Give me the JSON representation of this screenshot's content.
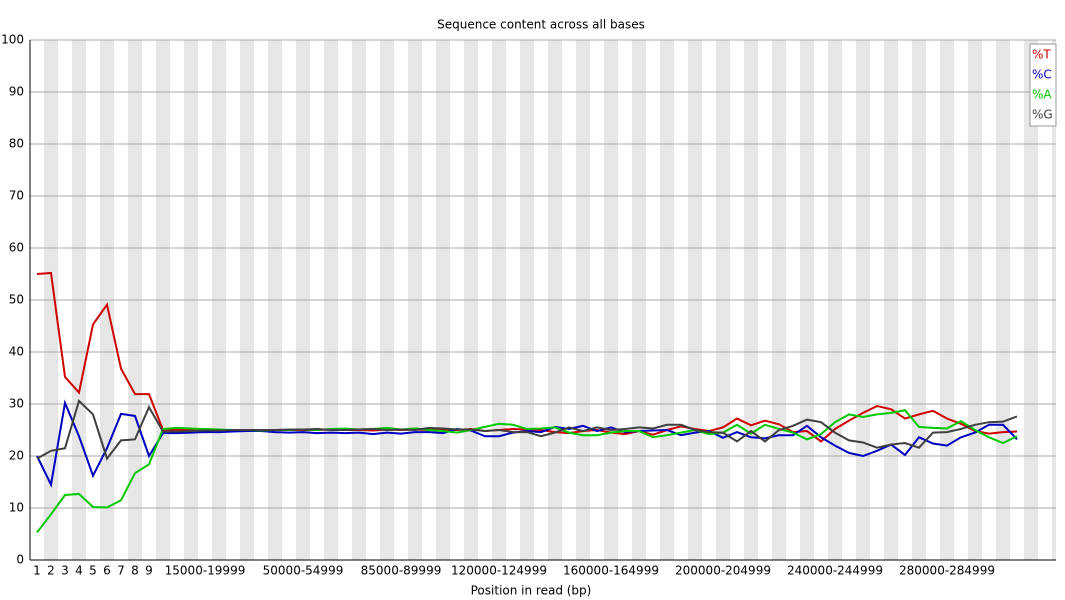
{
  "chart_data": {
    "type": "line",
    "title": "Sequence content across all bases",
    "x_label": "Position in read (bp)",
    "categories": [
      "1",
      "2",
      "3",
      "4",
      "5",
      "6",
      "7",
      "8",
      "9",
      null,
      null,
      null,
      "15000-19999",
      null,
      null,
      null,
      null,
      null,
      null,
      "50000-54999",
      null,
      null,
      null,
      null,
      null,
      null,
      "85000-89999",
      null,
      null,
      null,
      null,
      null,
      null,
      "120000-124999",
      null,
      null,
      null,
      null,
      null,
      null,
      null,
      "160000-164999",
      null,
      null,
      null,
      null,
      null,
      null,
      null,
      "200000-204999",
      null,
      null,
      null,
      null,
      null,
      null,
      null,
      "240000-244999",
      null,
      null,
      null,
      null,
      null,
      null,
      null,
      "280000-284999",
      null,
      null,
      null,
      null,
      null
    ],
    "series": [
      {
        "name": "%T",
        "color": "#d00000",
        "values": [
          55,
          55.2,
          35.2,
          32.2,
          45.3,
          49.1,
          36.8,
          31.9,
          31.9,
          25,
          25,
          25,
          24.9,
          25,
          25,
          25,
          24.9,
          25,
          25,
          25,
          25,
          25.1,
          25,
          25,
          24.9,
          25.1,
          25,
          25.1,
          25,
          25,
          25,
          25.2,
          24.8,
          25,
          25.2,
          25.1,
          25,
          24.6,
          24.4,
          24.8,
          25,
          24.5,
          24.2,
          24.8,
          24.1,
          25,
          25.7,
          25.2,
          24.8,
          25.5,
          27.2,
          25.9,
          26.8,
          26.1,
          24.6,
          24.8,
          22.8,
          25.2,
          26.8,
          28.3,
          29.6,
          29,
          27.2,
          28,
          28.7,
          27.2,
          26.2,
          24.8,
          24.3,
          24.6,
          24.7
        ]
      },
      {
        "name": "%C",
        "color": "#0000c0",
        "values": [
          20,
          14.5,
          30.2,
          23.8,
          16.2,
          21.5,
          28.1,
          27.7,
          20,
          24.4,
          24.4,
          24.5,
          24.6,
          24.6,
          24.7,
          24.8,
          24.8,
          24.6,
          24.5,
          24.6,
          24.4,
          24.5,
          24.4,
          24.5,
          24.2,
          24.5,
          24.3,
          24.6,
          24.6,
          24.4,
          25.2,
          24.9,
          23.8,
          23.8,
          24.5,
          24.8,
          24.6,
          25.6,
          25.2,
          25.8,
          24.8,
          25.5,
          24.6,
          24.8,
          24.9,
          25,
          24,
          24.5,
          24.8,
          23.5,
          24.6,
          23.6,
          23.4,
          24,
          24,
          25.8,
          23.6,
          22,
          20.6,
          20,
          21,
          22.2,
          20.2,
          23.6,
          22.4,
          22,
          23.6,
          24.5,
          26,
          26,
          23.2
        ]
      },
      {
        "name": "%A",
        "color": "#00c800",
        "values": [
          5.3,
          8.8,
          12.5,
          12.7,
          10.2,
          10.1,
          11.5,
          16.7,
          18.4,
          25.2,
          25.4,
          25.3,
          25.2,
          25.1,
          25,
          25,
          24.9,
          25,
          25,
          25.1,
          25,
          25.2,
          25.3,
          25.1,
          25.2,
          25.4,
          25.1,
          25.3,
          25,
          24.8,
          24.5,
          25,
          25.6,
          26.2,
          26,
          25.2,
          25.3,
          25.5,
          24.5,
          24,
          24,
          24.5,
          24.8,
          24.8,
          23.6,
          24,
          24.5,
          25,
          24.2,
          24.5,
          26,
          24.3,
          26,
          25.2,
          24.5,
          23.2,
          24.2,
          26.5,
          28,
          27.5,
          28,
          28.3,
          28.8,
          25.6,
          25.4,
          25.3,
          26.7,
          25,
          23.6,
          22.5,
          23.8
        ]
      },
      {
        "name": "%G",
        "color": "#404040",
        "values": [
          19.5,
          21,
          21.5,
          30.6,
          28,
          19.5,
          23,
          23.2,
          29.4,
          24.7,
          24.7,
          24.8,
          24.9,
          24.9,
          25,
          25,
          25,
          25,
          25.1,
          25.1,
          25.2,
          25,
          25,
          25.1,
          25.2,
          25,
          25.1,
          25,
          25.4,
          25.3,
          25.1,
          25.1,
          24.8,
          25,
          24.6,
          24.6,
          23.8,
          24.5,
          25.5,
          24.8,
          25.5,
          25,
          25.2,
          25.5,
          25.3,
          26,
          26,
          25,
          24.6,
          24.5,
          22.8,
          24.8,
          22.8,
          25,
          25.8,
          27,
          26.5,
          24.5,
          23,
          22.6,
          21.6,
          22.2,
          22.5,
          21.6,
          24.5,
          24.6,
          25.2,
          26,
          26.5,
          26.6,
          27.6
        ]
      }
    ],
    "ylim": [
      0,
      100
    ],
    "yticks": [
      0,
      10,
      20,
      30,
      40,
      50,
      60,
      70,
      80,
      90,
      100
    ],
    "grid": true,
    "legend": "top-right"
  }
}
